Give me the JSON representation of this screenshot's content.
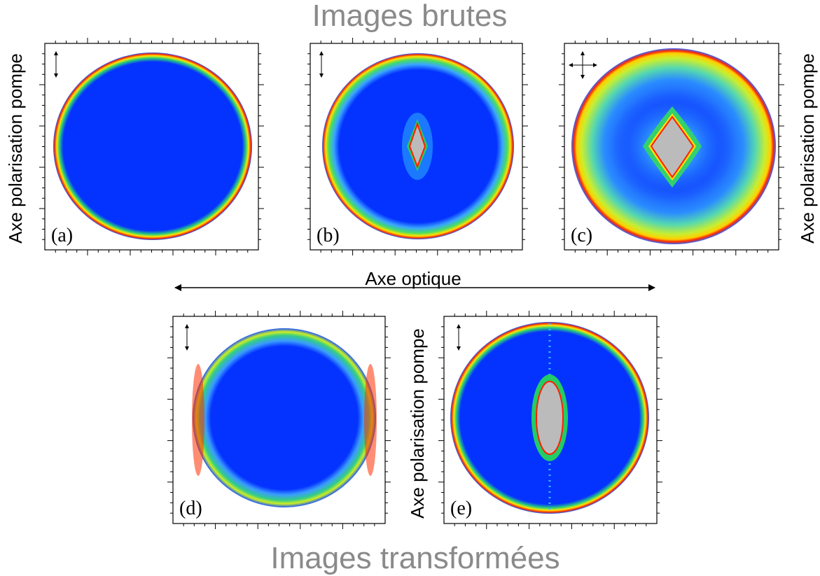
{
  "header": {
    "title": "Images brutes"
  },
  "footer": {
    "title": "Images transformées"
  },
  "axis_labels": {
    "pump_left": "Axe polarisation pompe",
    "pump_right": "Axe polarisation pompe",
    "pump_e": "Axe polarisation pompe",
    "optical": "Axe optique"
  },
  "panels": [
    {
      "label": "(a)"
    },
    {
      "label": "(b)"
    },
    {
      "label": "(c)"
    },
    {
      "label": "(d)"
    },
    {
      "label": "(e)"
    }
  ]
}
